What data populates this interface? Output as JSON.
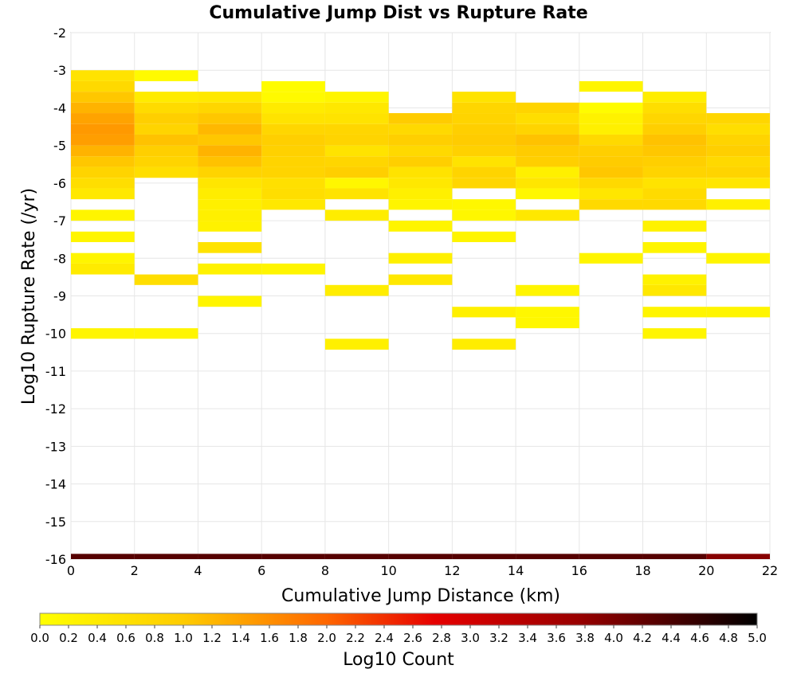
{
  "chart_data": {
    "type": "heatmap",
    "title": "Cumulative Jump Dist vs Rupture Rate",
    "xlabel": "Cumulative Jump Distance (km)",
    "ylabel": "Log10 Rupture Rate (/yr)",
    "xlim": [
      0,
      22
    ],
    "ylim": [
      -16,
      -2
    ],
    "x_ticks": [
      0,
      2,
      4,
      6,
      8,
      10,
      12,
      14,
      16,
      18,
      20,
      22
    ],
    "y_ticks": [
      -2,
      -3,
      -4,
      -5,
      -6,
      -7,
      -8,
      -9,
      -10,
      -11,
      -12,
      -13,
      -14,
      -15,
      -16
    ],
    "x_bin_width": 2,
    "y_bin_height": 0.286,
    "grid": true,
    "colorbar": {
      "label": "Log10 Count",
      "range": [
        0.0,
        5.0
      ],
      "ticks": [
        "0.0",
        "0.2",
        "0.4",
        "0.6",
        "0.8",
        "1.0",
        "1.2",
        "1.4",
        "1.6",
        "1.8",
        "2.0",
        "2.2",
        "2.4",
        "2.6",
        "2.8",
        "3.0",
        "3.2",
        "3.4",
        "3.6",
        "3.8",
        "4.0",
        "4.2",
        "4.4",
        "4.6",
        "4.8",
        "5.0"
      ],
      "colors": [
        "#ffff00",
        "#ffcc00",
        "#ff6600",
        "#e60000",
        "#990000",
        "#000000"
      ]
    },
    "cells": [
      {
        "x": 0,
        "bands": [
          {
            "y0": -3.29,
            "y1": -3.0,
            "v": 0.55
          },
          {
            "y0": -3.57,
            "y1": -3.29,
            "v": 0.75
          },
          {
            "y0": -3.86,
            "y1": -3.57,
            "v": 1.05
          },
          {
            "y0": -4.14,
            "y1": -3.86,
            "v": 1.25
          },
          {
            "y0": -4.43,
            "y1": -4.14,
            "v": 1.4
          },
          {
            "y0": -4.71,
            "y1": -4.43,
            "v": 1.5
          },
          {
            "y0": -5.0,
            "y1": -4.71,
            "v": 1.45
          },
          {
            "y0": -5.29,
            "y1": -5.0,
            "v": 1.25
          },
          {
            "y0": -5.57,
            "y1": -5.29,
            "v": 1.05
          },
          {
            "y0": -5.86,
            "y1": -5.57,
            "v": 0.85
          },
          {
            "y0": -6.14,
            "y1": -5.86,
            "v": 0.65
          },
          {
            "y0": -6.43,
            "y1": -6.14,
            "v": 0.45
          },
          {
            "y0": -7.0,
            "y1": -6.71,
            "v": 0.2
          },
          {
            "y0": -7.57,
            "y1": -7.29,
            "v": 0.2
          },
          {
            "y0": -8.14,
            "y1": -7.86,
            "v": 0.2
          },
          {
            "y0": -8.43,
            "y1": -8.14,
            "v": 0.4
          },
          {
            "y0": -10.14,
            "y1": -9.86,
            "v": 0.2
          },
          {
            "y0": -16.0,
            "y1": -15.86,
            "v": 4.3
          }
        ]
      },
      {
        "x": 2,
        "bands": [
          {
            "y0": -3.29,
            "y1": -3.0,
            "v": 0.1
          },
          {
            "y0": -3.86,
            "y1": -3.57,
            "v": 0.4
          },
          {
            "y0": -4.14,
            "y1": -3.86,
            "v": 0.7
          },
          {
            "y0": -4.43,
            "y1": -4.14,
            "v": 0.95
          },
          {
            "y0": -4.71,
            "y1": -4.43,
            "v": 0.85
          },
          {
            "y0": -5.0,
            "y1": -4.71,
            "v": 1.1
          },
          {
            "y0": -5.29,
            "y1": -5.0,
            "v": 0.95
          },
          {
            "y0": -5.57,
            "y1": -5.29,
            "v": 0.85
          },
          {
            "y0": -5.86,
            "y1": -5.57,
            "v": 0.65
          },
          {
            "y0": -8.71,
            "y1": -8.43,
            "v": 0.65
          },
          {
            "y0": -10.14,
            "y1": -9.86,
            "v": 0.2
          },
          {
            "y0": -16.0,
            "y1": -15.86,
            "v": 4.3
          }
        ]
      },
      {
        "x": 4,
        "bands": [
          {
            "y0": -3.86,
            "y1": -3.57,
            "v": 0.45
          },
          {
            "y0": -4.14,
            "y1": -3.86,
            "v": 0.8
          },
          {
            "y0": -4.43,
            "y1": -4.14,
            "v": 1.05
          },
          {
            "y0": -4.71,
            "y1": -4.43,
            "v": 1.2
          },
          {
            "y0": -5.0,
            "y1": -4.71,
            "v": 1.05
          },
          {
            "y0": -5.29,
            "y1": -5.0,
            "v": 1.25
          },
          {
            "y0": -5.57,
            "y1": -5.29,
            "v": 1.1
          },
          {
            "y0": -5.86,
            "y1": -5.57,
            "v": 0.85
          },
          {
            "y0": -6.14,
            "y1": -5.86,
            "v": 0.5
          },
          {
            "y0": -6.43,
            "y1": -6.14,
            "v": 0.35
          },
          {
            "y0": -6.71,
            "y1": -6.43,
            "v": 0.3
          },
          {
            "y0": -7.0,
            "y1": -6.71,
            "v": 0.3
          },
          {
            "y0": -7.29,
            "y1": -7.0,
            "v": 0.25
          },
          {
            "y0": -7.86,
            "y1": -7.57,
            "v": 0.55
          },
          {
            "y0": -8.43,
            "y1": -8.14,
            "v": 0.25
          },
          {
            "y0": -9.29,
            "y1": -9.0,
            "v": 0.2
          },
          {
            "y0": -16.0,
            "y1": -15.86,
            "v": 4.3
          }
        ]
      },
      {
        "x": 6,
        "bands": [
          {
            "y0": -3.57,
            "y1": -3.29,
            "v": 0.05
          },
          {
            "y0": -3.86,
            "y1": -3.57,
            "v": 0.1
          },
          {
            "y0": -4.14,
            "y1": -3.86,
            "v": 0.4
          },
          {
            "y0": -4.43,
            "y1": -4.14,
            "v": 0.55
          },
          {
            "y0": -4.71,
            "y1": -4.43,
            "v": 0.8
          },
          {
            "y0": -5.0,
            "y1": -4.71,
            "v": 0.95
          },
          {
            "y0": -5.29,
            "y1": -5.0,
            "v": 0.9
          },
          {
            "y0": -5.57,
            "y1": -5.29,
            "v": 0.85
          },
          {
            "y0": -5.86,
            "y1": -5.57,
            "v": 0.85
          },
          {
            "y0": -6.14,
            "y1": -5.86,
            "v": 0.6
          },
          {
            "y0": -6.43,
            "y1": -6.14,
            "v": 0.65
          },
          {
            "y0": -6.71,
            "y1": -6.43,
            "v": 0.45
          },
          {
            "y0": -8.43,
            "y1": -8.14,
            "v": 0.2
          },
          {
            "y0": -16.0,
            "y1": -15.86,
            "v": 4.3
          }
        ]
      },
      {
        "x": 8,
        "bands": [
          {
            "y0": -3.86,
            "y1": -3.57,
            "v": 0.2
          },
          {
            "y0": -4.14,
            "y1": -3.86,
            "v": 0.45
          },
          {
            "y0": -4.43,
            "y1": -4.14,
            "v": 0.55
          },
          {
            "y0": -4.71,
            "y1": -4.43,
            "v": 0.8
          },
          {
            "y0": -5.0,
            "y1": -4.71,
            "v": 0.85
          },
          {
            "y0": -5.29,
            "y1": -5.0,
            "v": 0.55
          },
          {
            "y0": -5.57,
            "y1": -5.29,
            "v": 0.8
          },
          {
            "y0": -5.86,
            "y1": -5.57,
            "v": 0.95
          },
          {
            "y0": -6.14,
            "y1": -5.86,
            "v": 0.15
          },
          {
            "y0": -6.43,
            "y1": -6.14,
            "v": 0.55
          },
          {
            "y0": -7.0,
            "y1": -6.71,
            "v": 0.35
          },
          {
            "y0": -9.0,
            "y1": -8.71,
            "v": 0.35
          },
          {
            "y0": -10.43,
            "y1": -10.14,
            "v": 0.3
          },
          {
            "y0": -16.0,
            "y1": -15.86,
            "v": 4.3
          }
        ]
      },
      {
        "x": 10,
        "bands": [
          {
            "y0": -4.43,
            "y1": -4.14,
            "v": 1.0
          },
          {
            "y0": -4.71,
            "y1": -4.43,
            "v": 0.75
          },
          {
            "y0": -5.0,
            "y1": -4.71,
            "v": 0.95
          },
          {
            "y0": -5.29,
            "y1": -5.0,
            "v": 0.75
          },
          {
            "y0": -5.57,
            "y1": -5.29,
            "v": 0.95
          },
          {
            "y0": -5.86,
            "y1": -5.57,
            "v": 0.55
          },
          {
            "y0": -6.14,
            "y1": -5.86,
            "v": 0.45
          },
          {
            "y0": -6.43,
            "y1": -6.14,
            "v": 0.3
          },
          {
            "y0": -6.71,
            "y1": -6.43,
            "v": 0.2
          },
          {
            "y0": -7.29,
            "y1": -7.0,
            "v": 0.2
          },
          {
            "y0": -8.14,
            "y1": -7.86,
            "v": 0.3
          },
          {
            "y0": -8.71,
            "y1": -8.43,
            "v": 0.45
          },
          {
            "y0": -16.0,
            "y1": -15.86,
            "v": 4.3
          }
        ]
      },
      {
        "x": 12,
        "bands": [
          {
            "y0": -3.86,
            "y1": -3.57,
            "v": 0.55
          },
          {
            "y0": -4.14,
            "y1": -3.86,
            "v": 0.8
          },
          {
            "y0": -4.43,
            "y1": -4.14,
            "v": 0.85
          },
          {
            "y0": -4.71,
            "y1": -4.43,
            "v": 0.95
          },
          {
            "y0": -5.0,
            "y1": -4.71,
            "v": 1.0
          },
          {
            "y0": -5.29,
            "y1": -5.0,
            "v": 0.9
          },
          {
            "y0": -5.57,
            "y1": -5.29,
            "v": 0.55
          },
          {
            "y0": -5.86,
            "y1": -5.57,
            "v": 0.85
          },
          {
            "y0": -6.14,
            "y1": -5.86,
            "v": 0.8
          },
          {
            "y0": -6.71,
            "y1": -6.43,
            "v": 0.15
          },
          {
            "y0": -7.0,
            "y1": -6.71,
            "v": 0.15
          },
          {
            "y0": -7.57,
            "y1": -7.29,
            "v": 0.2
          },
          {
            "y0": -9.57,
            "y1": -9.29,
            "v": 0.3
          },
          {
            "y0": -10.43,
            "y1": -10.14,
            "v": 0.35
          },
          {
            "y0": -16.0,
            "y1": -15.86,
            "v": 4.3
          }
        ]
      },
      {
        "x": 14,
        "bands": [
          {
            "y0": -4.14,
            "y1": -3.86,
            "v": 0.85
          },
          {
            "y0": -4.43,
            "y1": -4.14,
            "v": 0.65
          },
          {
            "y0": -4.71,
            "y1": -4.43,
            "v": 0.85
          },
          {
            "y0": -5.0,
            "y1": -4.71,
            "v": 1.1
          },
          {
            "y0": -5.29,
            "y1": -5.0,
            "v": 1.0
          },
          {
            "y0": -5.57,
            "y1": -5.29,
            "v": 0.95
          },
          {
            "y0": -5.86,
            "y1": -5.57,
            "v": 0.3
          },
          {
            "y0": -6.14,
            "y1": -5.86,
            "v": 0.5
          },
          {
            "y0": -6.43,
            "y1": -6.14,
            "v": 0.15
          },
          {
            "y0": -7.0,
            "y1": -6.71,
            "v": 0.45
          },
          {
            "y0": -9.0,
            "y1": -8.71,
            "v": 0.2
          },
          {
            "y0": -9.57,
            "y1": -9.29,
            "v": 0.15
          },
          {
            "y0": -9.86,
            "y1": -9.57,
            "v": 0.15
          },
          {
            "y0": -16.0,
            "y1": -15.86,
            "v": 4.3
          }
        ]
      },
      {
        "x": 16,
        "bands": [
          {
            "y0": -3.57,
            "y1": -3.29,
            "v": 0.2
          },
          {
            "y0": -4.14,
            "y1": -3.86,
            "v": 0.05
          },
          {
            "y0": -4.43,
            "y1": -4.14,
            "v": 0.25
          },
          {
            "y0": -4.71,
            "y1": -4.43,
            "v": 0.3
          },
          {
            "y0": -5.0,
            "y1": -4.71,
            "v": 0.75
          },
          {
            "y0": -5.29,
            "y1": -5.0,
            "v": 0.95
          },
          {
            "y0": -5.57,
            "y1": -5.29,
            "v": 1.0
          },
          {
            "y0": -5.86,
            "y1": -5.57,
            "v": 1.05
          },
          {
            "y0": -6.14,
            "y1": -5.86,
            "v": 0.75
          },
          {
            "y0": -6.43,
            "y1": -6.14,
            "v": 0.5
          },
          {
            "y0": -6.71,
            "y1": -6.43,
            "v": 0.75
          },
          {
            "y0": -8.14,
            "y1": -7.86,
            "v": 0.2
          },
          {
            "y0": -16.0,
            "y1": -15.86,
            "v": 4.3
          }
        ]
      },
      {
        "x": 18,
        "bands": [
          {
            "y0": -3.86,
            "y1": -3.57,
            "v": 0.35
          },
          {
            "y0": -4.14,
            "y1": -3.86,
            "v": 0.65
          },
          {
            "y0": -4.43,
            "y1": -4.14,
            "v": 0.8
          },
          {
            "y0": -4.71,
            "y1": -4.43,
            "v": 0.95
          },
          {
            "y0": -5.0,
            "y1": -4.71,
            "v": 1.1
          },
          {
            "y0": -5.29,
            "y1": -5.0,
            "v": 1.05
          },
          {
            "y0": -5.57,
            "y1": -5.29,
            "v": 0.95
          },
          {
            "y0": -5.86,
            "y1": -5.57,
            "v": 0.85
          },
          {
            "y0": -6.14,
            "y1": -5.86,
            "v": 0.55
          },
          {
            "y0": -6.43,
            "y1": -6.14,
            "v": 0.7
          },
          {
            "y0": -6.71,
            "y1": -6.43,
            "v": 0.75
          },
          {
            "y0": -7.29,
            "y1": -7.0,
            "v": 0.25
          },
          {
            "y0": -7.86,
            "y1": -7.57,
            "v": 0.2
          },
          {
            "y0": -8.71,
            "y1": -8.43,
            "v": 0.25
          },
          {
            "y0": -9.0,
            "y1": -8.71,
            "v": 0.45
          },
          {
            "y0": -9.57,
            "y1": -9.29,
            "v": 0.2
          },
          {
            "y0": -10.14,
            "y1": -9.86,
            "v": 0.2
          },
          {
            "y0": -16.0,
            "y1": -15.86,
            "v": 4.3
          }
        ]
      },
      {
        "x": 20,
        "bands": [
          {
            "y0": -4.43,
            "y1": -4.14,
            "v": 0.8
          },
          {
            "y0": -4.71,
            "y1": -4.43,
            "v": 0.65
          },
          {
            "y0": -5.0,
            "y1": -4.71,
            "v": 0.85
          },
          {
            "y0": -5.29,
            "y1": -5.0,
            "v": 0.95
          },
          {
            "y0": -5.57,
            "y1": -5.29,
            "v": 0.75
          },
          {
            "y0": -5.86,
            "y1": -5.57,
            "v": 0.85
          },
          {
            "y0": -6.14,
            "y1": -5.86,
            "v": 0.5
          },
          {
            "y0": -6.71,
            "y1": -6.43,
            "v": 0.3
          },
          {
            "y0": -8.14,
            "y1": -7.86,
            "v": 0.2
          },
          {
            "y0": -9.57,
            "y1": -9.29,
            "v": 0.2
          },
          {
            "y0": -16.0,
            "y1": -15.86,
            "v": 3.9
          }
        ]
      }
    ]
  }
}
